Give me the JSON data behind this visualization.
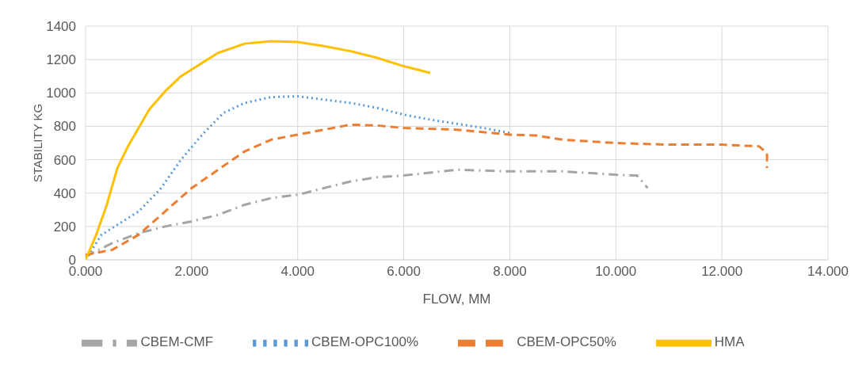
{
  "chart_data": {
    "type": "line",
    "xlabel": "FLOW, MM",
    "ylabel": "STABILITY KG",
    "xlim": [
      0,
      14
    ],
    "xticks": [
      {
        "value": 0,
        "label": "0.000"
      },
      {
        "value": 2,
        "label": "2.000"
      },
      {
        "value": 4,
        "label": "4.000"
      },
      {
        "value": 6,
        "label": "6.000"
      },
      {
        "value": 8,
        "label": "8.000"
      },
      {
        "value": 10,
        "label": "10.000"
      },
      {
        "value": 12,
        "label": "12.000"
      },
      {
        "value": 14,
        "label": "14.000"
      }
    ],
    "ylim": [
      0,
      1400
    ],
    "yticks": [
      0,
      200,
      400,
      600,
      800,
      1000,
      1200,
      1400
    ],
    "grid": true,
    "legend": "bottom",
    "marker": "none",
    "series": [
      {
        "name": "CBEM-CMF",
        "color": "#a5a5a5",
        "line_style": "dashdot",
        "x": [
          0,
          0.5,
          1,
          1.5,
          2,
          2.5,
          3,
          3.5,
          4,
          4.5,
          5,
          5.5,
          6,
          7,
          8,
          9,
          10,
          10.4,
          10.6
        ],
        "values": [
          20,
          100,
          160,
          200,
          230,
          270,
          330,
          370,
          390,
          430,
          470,
          495,
          505,
          540,
          530,
          530,
          510,
          505,
          430
        ]
      },
      {
        "name": "CBEM-OPC100%",
        "color": "#5b9bd5",
        "line_style": "dotted",
        "x": [
          0,
          0.3,
          0.6,
          1,
          1.4,
          1.8,
          2.2,
          2.6,
          3,
          3.5,
          4,
          4.5,
          5,
          5.5,
          6,
          6.5,
          7,
          7.5,
          8
        ],
        "values": [
          0,
          150,
          210,
          290,
          420,
          600,
          750,
          880,
          940,
          975,
          980,
          960,
          940,
          910,
          870,
          840,
          815,
          790,
          760
        ]
      },
      {
        "name": "CBEM-OPC50%",
        "color": "#ed7d31",
        "line_style": "dashed",
        "x": [
          0,
          0.5,
          1,
          1.5,
          2,
          2.5,
          3,
          3.5,
          4,
          4.5,
          5,
          5.5,
          6,
          7,
          8,
          8.5,
          9,
          10,
          11,
          12,
          12.7,
          12.85,
          12.85
        ],
        "values": [
          30,
          60,
          150,
          290,
          430,
          540,
          650,
          720,
          750,
          780,
          810,
          805,
          790,
          780,
          750,
          745,
          720,
          700,
          690,
          690,
          680,
          640,
          550
        ]
      },
      {
        "name": "HMA",
        "color": "#ffc000",
        "line_style": "solid",
        "x": [
          0,
          0.2,
          0.4,
          0.6,
          0.8,
          1,
          1.2,
          1.5,
          1.8,
          2,
          2.5,
          3,
          3.5,
          4,
          4.5,
          5,
          5.5,
          6,
          6.5
        ],
        "values": [
          0,
          150,
          330,
          550,
          680,
          790,
          900,
          1010,
          1100,
          1140,
          1240,
          1295,
          1310,
          1305,
          1280,
          1250,
          1210,
          1160,
          1120
        ]
      }
    ]
  }
}
